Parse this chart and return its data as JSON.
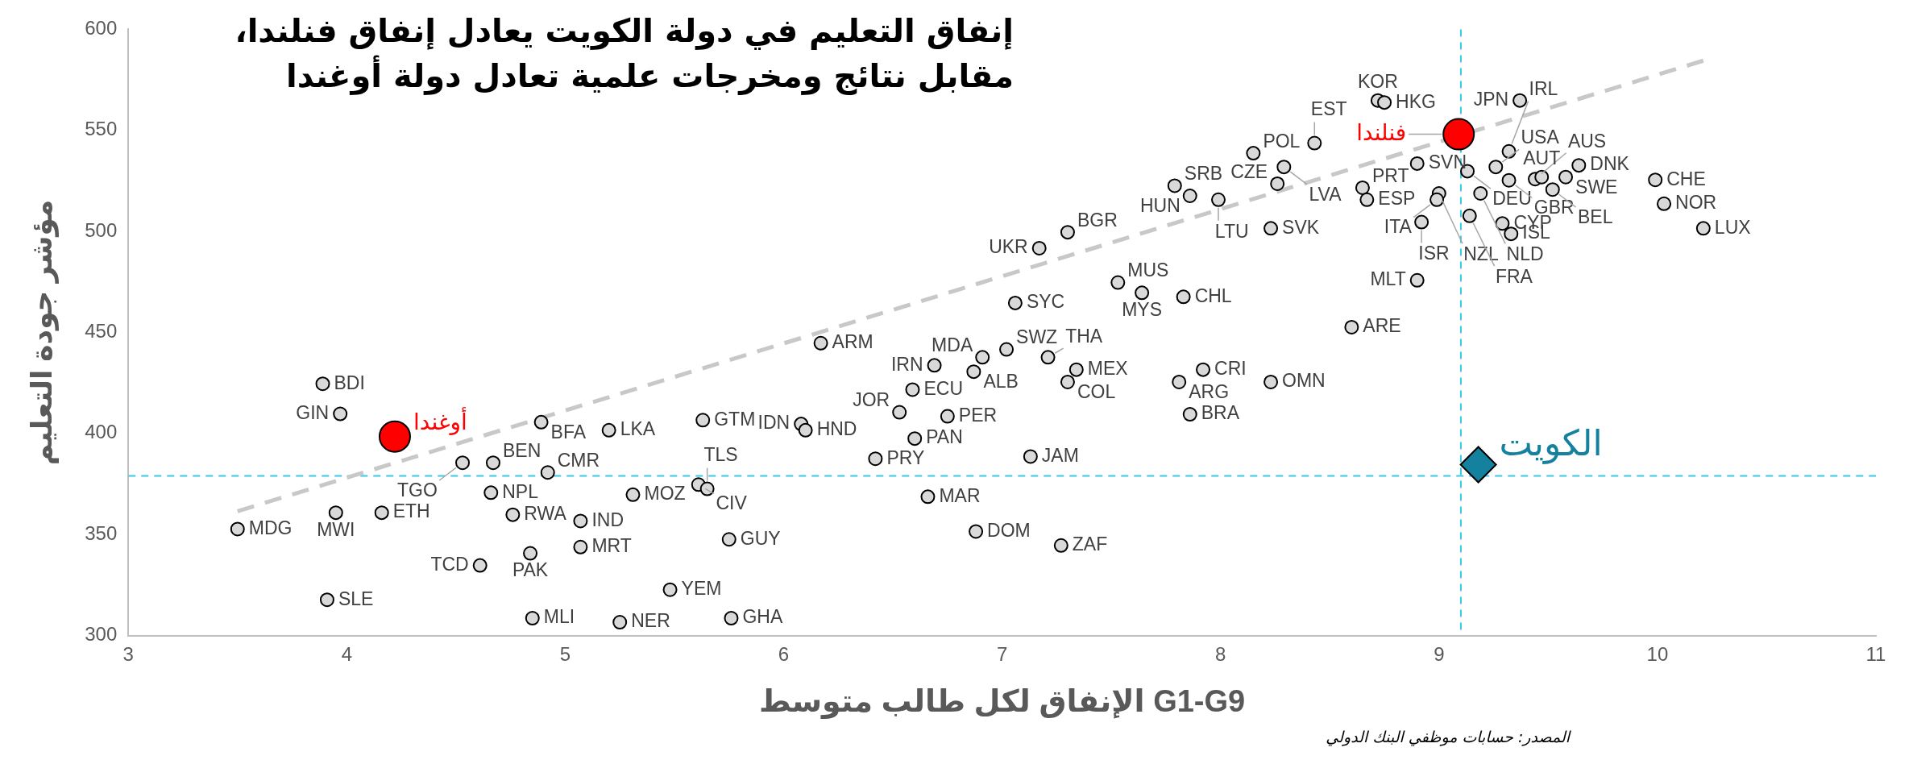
{
  "chart_data": {
    "type": "scatter",
    "title": "إنفاق التعليم في دولة الكويت يعادل إنفاق فنلندا،\nمقابل نتائج ومخرجات علمية تعادل دولة أوغندا",
    "xlabel": "الإنفاق لكل طالب متوسط G1-G9",
    "ylabel": "مؤشر جودة التعليم",
    "annotations": [
      "المصدر: حسابات موظفي البنك الدولي"
    ],
    "xlim": [
      3,
      11
    ],
    "ylim": [
      300,
      600
    ],
    "xticks": [
      3,
      4,
      5,
      6,
      7,
      8,
      9,
      10,
      11
    ],
    "yticks": [
      300,
      350,
      400,
      450,
      500,
      550,
      600
    ],
    "grid": false,
    "legend": false,
    "ref_lines": [
      {
        "axis": "x",
        "value": 9.1,
        "color": "#3cc6e8",
        "line_style": "dashed"
      },
      {
        "axis": "y",
        "value": 379,
        "color": "#3cc6e8",
        "line_style": "dashed"
      }
    ],
    "series": [
      {
        "type": "line",
        "color": "#c8c8c8",
        "line_style": "dashed",
        "marker": "none",
        "x": [
          3.5,
          10.21
        ],
        "values": [
          361.5,
          584.5
        ]
      },
      {
        "color": "#d9d9d9",
        "marker": "circle",
        "x": [
          3.89,
          3.97,
          3.5,
          3.95,
          4.16,
          3.91,
          4.53,
          4.67,
          4.66,
          4.92,
          5.07,
          5.31,
          4.76,
          4.84,
          4.61,
          5.07,
          4.85,
          5.25,
          5.48,
          5.76,
          5.75,
          4.89,
          5.2,
          5.63,
          5.61,
          5.65,
          6.08,
          6.1,
          6.42,
          6.6,
          6.75,
          6.53,
          6.59,
          6.87,
          6.91,
          6.69,
          7.02,
          7.21,
          7.34,
          7.3,
          7.13,
          6.66,
          6.88,
          7.27,
          6.17,
          7.06,
          7.17,
          7.3,
          7.53,
          7.64,
          7.83,
          7.81,
          7.92,
          7.86,
          8.23,
          8.6,
          8.9,
          7.79,
          7.86,
          7.99,
          8.23,
          8.15,
          8.29,
          8.26,
          8.43,
          8.72,
          8.75,
          8.9,
          8.65,
          8.67,
          9.0,
          8.99,
          8.92,
          9.13,
          9.26,
          9.32,
          9.19,
          9.14,
          9.29,
          9.33,
          9.32,
          9.37,
          9.44,
          9.47,
          9.58,
          9.64,
          9.52,
          9.99,
          10.03,
          10.21
        ],
        "values": [
          424.6,
          409.7,
          352.7,
          360.8,
          360.8,
          317.7,
          385.5,
          385.5,
          370.7,
          380.7,
          356.7,
          369.7,
          359.8,
          340.7,
          334.7,
          343.8,
          308.6,
          306.6,
          322.7,
          308.6,
          347.6,
          405.6,
          401.6,
          406.6,
          374.7,
          372.6,
          404.7,
          401.6,
          387.5,
          397.5,
          408.5,
          410.5,
          421.7,
          430.6,
          437.7,
          433.7,
          441.6,
          437.7,
          431.6,
          425.5,
          388.6,
          368.7,
          351.5,
          344.6,
          444.7,
          464.6,
          491.7,
          499.6,
          474.7,
          469.6,
          467.6,
          425.5,
          431.6,
          409.5,
          425.5,
          452.6,
          475.8,
          522.6,
          517.6,
          515.7,
          501.5,
          538.7,
          531.9,
          523.6,
          543.7,
          564.8,
          563.8,
          533.6,
          521.6,
          515.7,
          518.8,
          515.7,
          504.6,
          529.8,
          531.9,
          525.3,
          518.8,
          507.7,
          503.9,
          498.8,
          539.6,
          564.8,
          525.9,
          526.9,
          526.9,
          532.7,
          520.7,
          525.5,
          513.7,
          501.5
        ],
        "value_labels": [
          "BDI",
          "GIN",
          "MDG",
          "MWI",
          "ETH",
          "SLE",
          "TGO",
          "BEN",
          "NPL",
          "CMR",
          "IND",
          "MOZ",
          "RWA",
          "PAK",
          "TCD",
          "MRT",
          "MLI",
          "NER",
          "YEM",
          "GHA",
          "GUY",
          "BFA",
          "LKA",
          "GTM",
          "CIV",
          "TLS",
          "IDN",
          "HND",
          "PRY",
          "PAN",
          "PER",
          "JOR",
          "ECU",
          "ALB",
          "MDA",
          "IRN",
          "SWZ",
          "THA",
          "MEX",
          "COL",
          "JAM",
          "MAR",
          "DOM",
          "ZAF",
          "ARM",
          "SYC",
          "UKR",
          "BGR",
          "MUS",
          "MYS",
          "CHL",
          "ARG",
          "CRI",
          "BRA",
          "OMN",
          "ARE",
          "MLT",
          "SRB",
          "HUN",
          "LTU",
          "SVK",
          "POL",
          "LVA",
          "CZE",
          "EST",
          "KOR",
          "HKG",
          "SVN",
          "PRT",
          "ESP",
          "NZL",
          "ITA",
          "ISR",
          "DEU",
          "USA",
          "GBR",
          "NLD",
          "FRA",
          "CYP",
          "ISL",
          "IRL",
          "JPN",
          "AUS",
          "AUT",
          "SWE",
          "DNK",
          "BEL",
          "CHE",
          "NOR",
          "LUX"
        ]
      },
      {
        "color": "#ff0000",
        "marker": "circle",
        "x": [
          9.09,
          4.22
        ],
        "values": [
          548.1,
          398.5
        ],
        "value_labels": [
          "فنلندا",
          "أوغندا"
        ]
      },
      {
        "color": "#14819f",
        "marker": "diamond",
        "x": [
          9.18
        ],
        "values": [
          384.6
        ],
        "value_labels": [
          "الكويت"
        ]
      }
    ]
  }
}
